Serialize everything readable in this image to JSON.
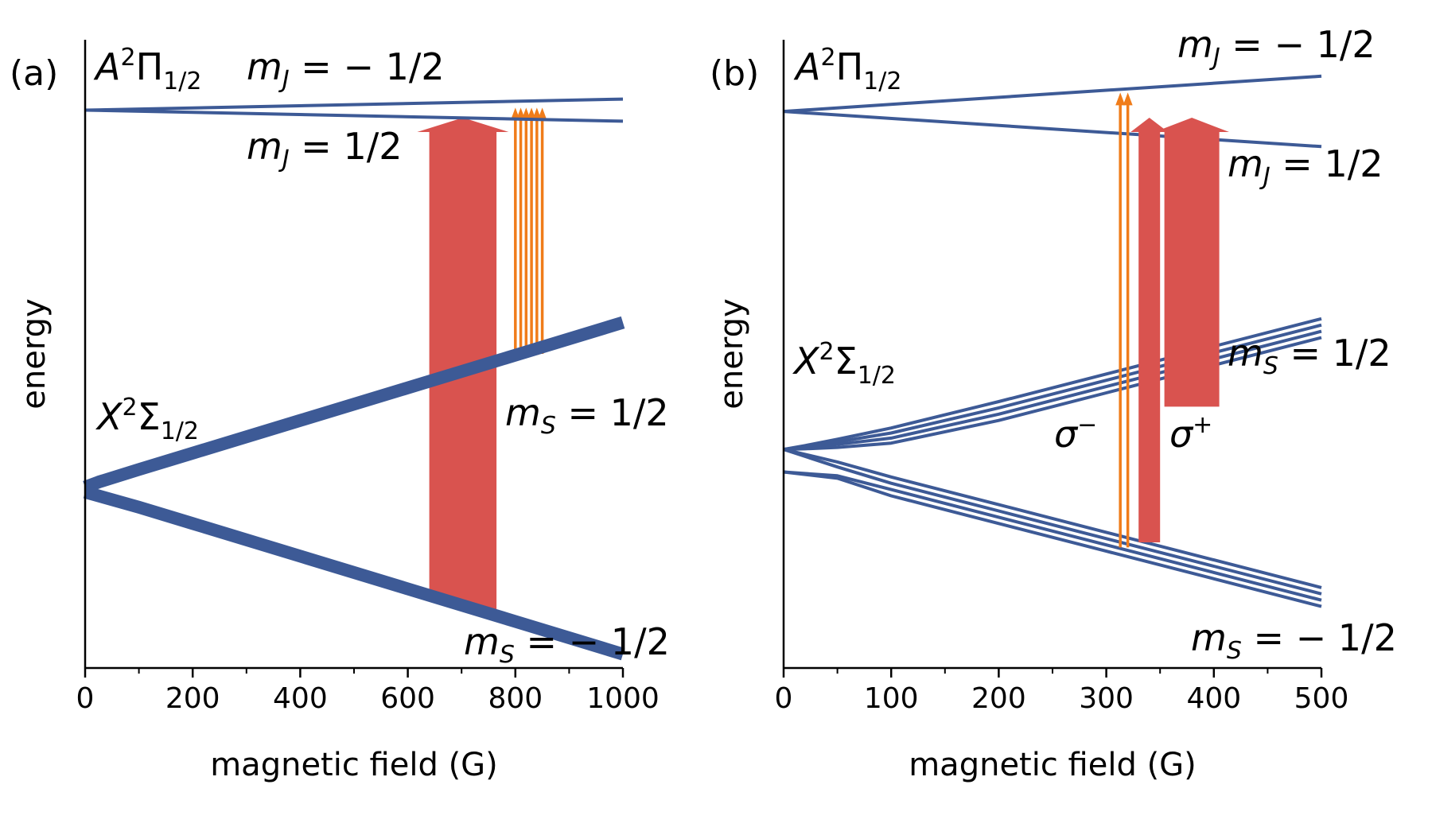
{
  "chart_data": [
    {
      "type": "line",
      "panel_label": "(a)",
      "xlabel": "magnetic field (G)",
      "ylabel": "energy",
      "xlim": [
        0,
        1000
      ],
      "ylim": [
        -1.1,
        1.4
      ],
      "xticks": [
        0,
        200,
        400,
        600,
        800,
        1000
      ],
      "xtick_labels": [
        "0",
        "200",
        "400",
        "600",
        "800",
        "1000"
      ],
      "minor_xtick_step": 100,
      "y_ticks_shown": false,
      "line_color": "#3d5a96",
      "excited_state": {
        "label": "A²Π1/2",
        "upper": "mJ = −1/2",
        "lower": "mJ = 1/2"
      },
      "ground_state": {
        "label": "X²Σ1/2",
        "upper": "mS = 1/2",
        "lower": "mS = −1/2"
      },
      "series": [
        {
          "name": "mJ = −1/2",
          "x": [
            0,
            1000
          ],
          "y": [
            1.12,
            1.164
          ],
          "group": "excited"
        },
        {
          "name": "mJ = 1/2",
          "x": [
            0,
            1000
          ],
          "y": [
            1.12,
            1.076
          ],
          "group": "excited"
        },
        {
          "name": "mS = 1/2",
          "x": [
            0,
            25,
            100,
            200,
            400,
            600,
            800,
            1000
          ],
          "y": [
            -0.38,
            -0.36,
            -0.31,
            -0.245,
            -0.115,
            0.015,
            0.145,
            0.275
          ],
          "width": "thick",
          "group": "ground"
        },
        {
          "name": "mS = −1/2",
          "x": [
            0,
            100,
            200,
            400,
            600,
            800,
            1000
          ],
          "y": [
            -0.4,
            -0.46,
            -0.525,
            -0.655,
            -0.785,
            -0.915,
            -1.045
          ],
          "width": "thick",
          "group": "ground"
        }
      ],
      "transitions": [
        {
          "kind": "broad",
          "color": "#d9534f",
          "x": [
            640,
            765
          ],
          "y_bottom_at_edges": [
            -0.8,
            -0.88
          ],
          "y_top": 1.09
        },
        {
          "kind": "narrow",
          "color": "#f07c1a",
          "x": [
            800,
            810,
            820,
            830,
            840,
            850
          ],
          "y_bottom_at_edges": [
            0.128,
            0.15
          ],
          "y_top": 1.13
        }
      ]
    },
    {
      "type": "line",
      "panel_label": "(b)",
      "xlabel": "magnetic field (G)",
      "ylabel": "energy",
      "xlim": [
        0,
        500
      ],
      "ylim": [
        -1.1,
        1.4
      ],
      "xticks": [
        0,
        100,
        200,
        300,
        400,
        500
      ],
      "xtick_labels": [
        "0",
        "100",
        "200",
        "300",
        "400",
        "500"
      ],
      "minor_xtick_step": 50,
      "y_ticks_shown": false,
      "line_color": "#3d5a96",
      "excited_state": {
        "label": "A²Π1/2",
        "upper": "mJ = −1/2",
        "lower": "mJ = 1/2"
      },
      "ground_state": {
        "label": "X²Σ1/2",
        "upper": "mS = 1/2",
        "lower": "mS = −1/2"
      },
      "polarization_labels": {
        "sigma_minus": "σ−",
        "sigma_plus": "σ+"
      },
      "series": [
        {
          "name": "mJ = −1/2",
          "x": [
            0,
            500
          ],
          "y": [
            1.115,
            1.255
          ],
          "group": "excited"
        },
        {
          "name": "mJ = 1/2",
          "x": [
            0,
            500
          ],
          "y": [
            1.115,
            0.975
          ],
          "group": "excited"
        },
        {
          "name": "mS = 1/2 (1)",
          "x": [
            0,
            20,
            50,
            100,
            200,
            300,
            400,
            500
          ],
          "y": [
            -0.23,
            -0.215,
            -0.19,
            -0.145,
            -0.04,
            0.07,
            0.18,
            0.29
          ],
          "group": "ground"
        },
        {
          "name": "mS = 1/2 (2)",
          "x": [
            0,
            20,
            50,
            100,
            200,
            300,
            400,
            500
          ],
          "y": [
            -0.23,
            -0.22,
            -0.2,
            -0.165,
            -0.065,
            0.045,
            0.155,
            0.265
          ],
          "group": "ground"
        },
        {
          "name": "mS = 1/2 (3)",
          "x": [
            0,
            20,
            50,
            100,
            200,
            300,
            400,
            500
          ],
          "y": [
            -0.23,
            -0.225,
            -0.21,
            -0.185,
            -0.09,
            0.02,
            0.13,
            0.24
          ],
          "group": "ground"
        },
        {
          "name": "mS = 1/2 (4)",
          "x": [
            0,
            20,
            50,
            100,
            200,
            300,
            400,
            500
          ],
          "y": [
            -0.23,
            -0.228,
            -0.222,
            -0.205,
            -0.115,
            -0.005,
            0.105,
            0.215
          ],
          "group": "ground"
        },
        {
          "name": "mS = −1/2 (1)",
          "x": [
            0,
            50,
            100,
            200,
            300,
            400,
            500
          ],
          "y": [
            -0.23,
            -0.28,
            -0.34,
            -0.45,
            -0.56,
            -0.67,
            -0.78
          ],
          "group": "ground"
        },
        {
          "name": "mS = −1/2 (2)",
          "x": [
            0,
            50,
            100,
            200,
            300,
            400,
            500
          ],
          "y": [
            -0.23,
            -0.3,
            -0.365,
            -0.475,
            -0.585,
            -0.695,
            -0.805
          ],
          "group": "ground"
        },
        {
          "name": "mS = −1/2 (3)",
          "x": [
            0,
            50,
            100,
            200,
            300,
            400,
            500
          ],
          "y": [
            -0.32,
            -0.335,
            -0.39,
            -0.5,
            -0.61,
            -0.72,
            -0.83
          ],
          "group": "ground"
        },
        {
          "name": "mS = −1/2 (4)",
          "x": [
            0,
            50,
            100,
            200,
            300,
            400,
            500
          ],
          "y": [
            -0.32,
            -0.345,
            -0.415,
            -0.525,
            -0.635,
            -0.745,
            -0.855
          ],
          "group": "ground"
        }
      ],
      "transitions": [
        {
          "kind": "narrow",
          "label": "σ−",
          "color": "#f07c1a",
          "x": [
            313,
            320
          ],
          "y_bottom": -0.62,
          "y_top": 1.19
        },
        {
          "kind": "broad",
          "label": "σ+",
          "color": "#d9534f",
          "x": [
            330,
            350
          ],
          "y_bottom": -0.6,
          "y_top": 1.09
        },
        {
          "kind": "broad",
          "label": "σ+",
          "color": "#d9534f",
          "x": [
            354,
            405
          ],
          "y_bottom": -0.06,
          "y_top": 1.09
        }
      ]
    }
  ]
}
